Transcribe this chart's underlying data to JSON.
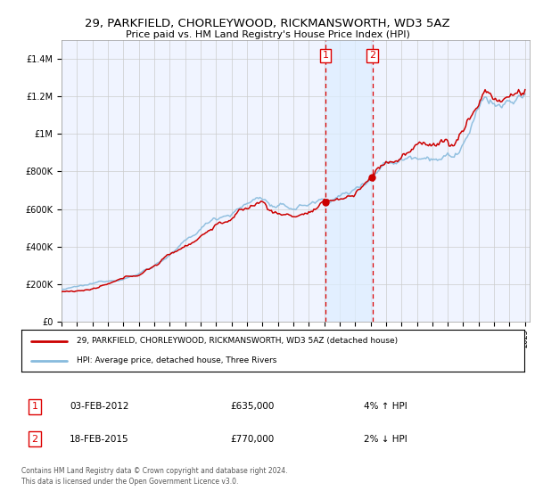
{
  "title1": "29, PARKFIELD, CHORLEYWOOD, RICKMANSWORTH, WD3 5AZ",
  "title2": "Price paid vs. HM Land Registry's House Price Index (HPI)",
  "legend_line1": "29, PARKFIELD, CHORLEYWOOD, RICKMANSWORTH, WD3 5AZ (detached house)",
  "legend_line2": "HPI: Average price, detached house, Three Rivers",
  "transaction1_date": "03-FEB-2012",
  "transaction1_price": 635000,
  "transaction1_info": "4% ↑ HPI",
  "transaction2_date": "18-FEB-2015",
  "transaction2_price": 770000,
  "transaction2_info": "2% ↓ HPI",
  "footer": "Contains HM Land Registry data © Crown copyright and database right 2024.\nThis data is licensed under the Open Government Licence v3.0.",
  "price_color": "#cc0000",
  "hpi_color": "#88bbdd",
  "background_color": "#ffffff",
  "grid_color": "#cccccc",
  "plot_bg_color": "#f0f4ff",
  "transaction1_year": 2012.08,
  "transaction2_year": 2015.12,
  "shade_color": "#ddeeff",
  "vline_color": "#dd0000"
}
